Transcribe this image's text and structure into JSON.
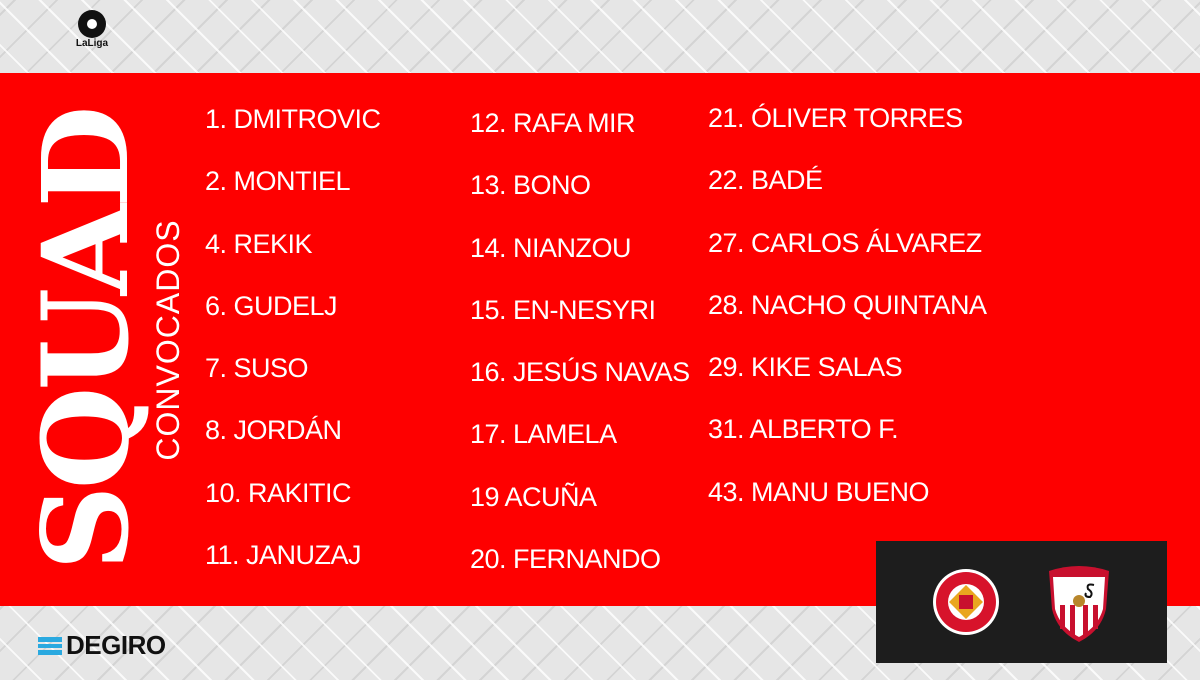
{
  "league_logo": {
    "text": "LaLiga"
  },
  "title": {
    "main": "SQUAD",
    "subtitle": "CONVOCADOS"
  },
  "columns": [
    [
      "1. DMITROVIC",
      "2. MONTIEL",
      "4. REKIK",
      "6. GUDELJ",
      "7. SUSO",
      "8. JORDÁN",
      "10. RAKITIC",
      "11. JANUZAJ"
    ],
    [
      "12. RAFA MIR",
      "13. BONO",
      "14. NIANZOU",
      "15. EN-NESYRI",
      "16. JESÚS NAVAS",
      "17. LAMELA",
      "19 ACUÑA",
      "20. FERNANDO"
    ],
    [
      "21. ÓLIVER TORRES",
      "22. BADÉ",
      "27. CARLOS ÁLVAREZ",
      "28. NACHO QUINTANA",
      "29. KIKE SALAS",
      "31. ALBERTO F.",
      "43. MANU BUENO"
    ]
  ],
  "sponsor": {
    "name": "DEGIRO"
  },
  "match": {
    "home_crest": "GIRONA FUTBOL CLUB",
    "away_crest": "SEVILLA FC"
  },
  "colors": {
    "band": "#fe0000",
    "text": "#ffffff",
    "match_box": "#1d1d1d"
  }
}
